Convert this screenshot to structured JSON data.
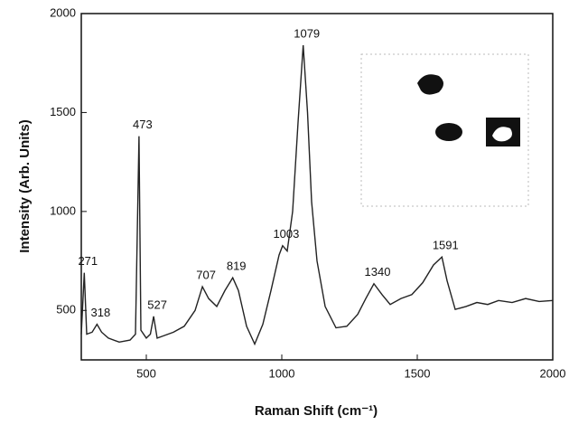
{
  "chart_data": {
    "type": "line",
    "x_label": "Raman Shift (cm⁻¹)",
    "y_label": "Intensity (Arb. Units)",
    "x": [
      260,
      271,
      280,
      300,
      318,
      335,
      360,
      400,
      440,
      460,
      473,
      480,
      500,
      515,
      527,
      540,
      560,
      600,
      640,
      680,
      707,
      730,
      760,
      790,
      819,
      840,
      870,
      900,
      930,
      960,
      990,
      1003,
      1020,
      1040,
      1060,
      1079,
      1095,
      1110,
      1130,
      1160,
      1200,
      1240,
      1280,
      1310,
      1340,
      1370,
      1400,
      1440,
      1480,
      1520,
      1560,
      1591,
      1610,
      1640,
      1680,
      1720,
      1760,
      1800,
      1850,
      1900,
      1950,
      2000
    ],
    "series": [
      {
        "color": "#222222",
        "values": [
          380,
          690,
          380,
          390,
          430,
          390,
          360,
          340,
          350,
          380,
          1380,
          400,
          360,
          380,
          470,
          360,
          370,
          390,
          420,
          500,
          620,
          560,
          520,
          600,
          665,
          600,
          420,
          330,
          430,
          600,
          780,
          827,
          800,
          1000,
          1450,
          1840,
          1500,
          1050,
          750,
          520,
          412,
          420,
          480,
          560,
          635,
          580,
          530,
          560,
          580,
          640,
          730,
          770,
          650,
          505,
          520,
          540,
          530,
          550,
          540,
          560,
          545,
          550
        ]
      }
    ],
    "peaks": [
      271,
      318,
      473,
      527,
      707,
      819,
      1003,
      1079,
      1340,
      1591
    ],
    "xlim": [
      260,
      2000
    ],
    "ylim": [
      250,
      2000
    ],
    "xticks": [
      500,
      1000,
      1500,
      2000
    ],
    "yticks": [
      500,
      1000,
      1500,
      2000
    ]
  }
}
